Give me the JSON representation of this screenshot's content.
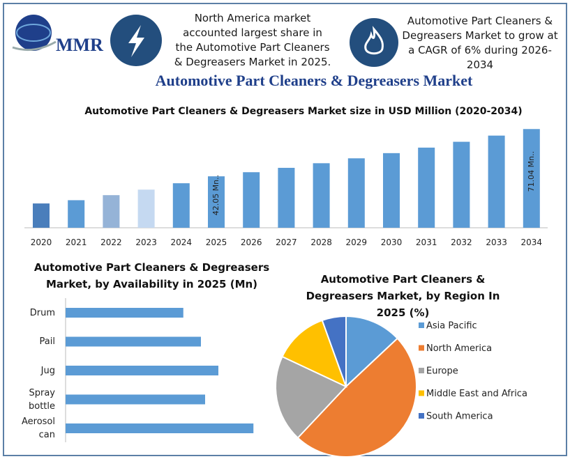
{
  "header": {
    "logo": "MMR",
    "note1": "North America market accounted largest share in the Automotive Part Cleaners & Degreasers Market in 2025.",
    "note2": "Automotive Part Cleaners & Degreasers Market to grow at a CAGR of 6% during 2026-2034",
    "title": "Automotive Part Cleaners & Degreasers Market"
  },
  "chart_data": [
    {
      "type": "bar",
      "title": "Automotive Part Cleaners & Degreasers Market size in USD Million (2020-2034)",
      "categories": [
        "2020",
        "2021",
        "2022",
        "2023",
        "2024",
        "2025",
        "2026",
        "2027",
        "2028",
        "2029",
        "2030",
        "2031",
        "2032",
        "2033",
        "2034"
      ],
      "values": [
        25.4,
        27.4,
        30.5,
        33.9,
        37.8,
        42.05,
        44.57,
        47.25,
        50.08,
        53.09,
        56.27,
        59.65,
        63.23,
        67.02,
        71.04
      ],
      "value_labels": [
        null,
        null,
        null,
        null,
        null,
        "42.05 Mn..",
        null,
        null,
        null,
        null,
        null,
        null,
        null,
        null,
        "71.04 Mn.."
      ],
      "colors": [
        "#4a7ebb",
        "#5b9bd5",
        "#95b3d7",
        "#c5d9f1",
        "#5b9bd5",
        "#5b9bd5",
        "#5b9bd5",
        "#5b9bd5",
        "#5b9bd5",
        "#5b9bd5",
        "#5b9bd5",
        "#5b9bd5",
        "#5b9bd5",
        "#5b9bd5",
        "#5b9bd5"
      ],
      "ylim": [
        10.5,
        75
      ]
    },
    {
      "type": "hbar",
      "title": "Automotive Part Cleaners & Degreasers Market, by Availability in 2025 (Mn)",
      "categories": [
        "Drum",
        "Pail",
        "Jug",
        "Spray bottle",
        "Aerosol can"
      ],
      "values": [
        6.75,
        7.76,
        8.76,
        8.0,
        10.77
      ],
      "color": "#5b9bd5",
      "xlim": [
        0,
        12
      ]
    },
    {
      "type": "pie",
      "title": "Automotive Part Cleaners & Degreasers Market, by Region In 2025 (%)",
      "categories": [
        "Asia Pacific",
        "North America",
        "Europe",
        "Middle East and Africa",
        "South America"
      ],
      "values": [
        13,
        49,
        20,
        12.5,
        5.5
      ],
      "colors": [
        "#5b9bd5",
        "#ed7d31",
        "#a5a5a5",
        "#ffc000",
        "#4472c4"
      ],
      "legend": "right"
    }
  ]
}
